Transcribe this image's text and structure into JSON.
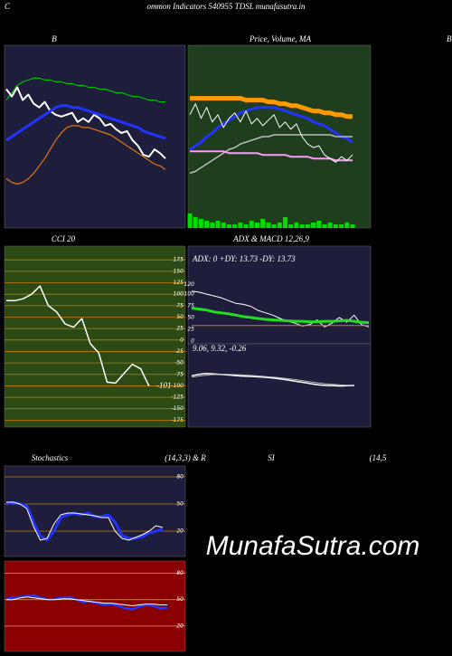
{
  "header": {
    "left": "C",
    "title": "ommon  Indicators 540955 TDSL  munafasutra.in",
    "edge_label": "B"
  },
  "watermark": "MunafaSutra.com",
  "chart_data": [
    {
      "type": "line",
      "title": "B",
      "background": "#1e1e3c",
      "ylim": [
        0,
        100
      ],
      "series": [
        {
          "color": "#00bb00",
          "width": 1.2,
          "values": [
            70,
            74,
            78,
            80,
            81,
            82,
            82,
            81,
            81,
            80,
            80,
            79,
            79,
            78,
            78,
            77,
            77,
            76,
            76,
            75,
            74,
            74,
            73,
            72,
            72,
            71,
            70,
            70,
            69,
            69
          ]
        },
        {
          "color": "#ffffff",
          "width": 2,
          "values": [
            76,
            72,
            77,
            70,
            73,
            68,
            66,
            69,
            64,
            62,
            61,
            62,
            63,
            58,
            60,
            58,
            62,
            60,
            56,
            57,
            54,
            52,
            53,
            48,
            45,
            40,
            39,
            43,
            41,
            38
          ]
        },
        {
          "color": "#2233ff",
          "width": 3,
          "values": [
            48,
            50,
            52,
            54,
            56,
            58,
            60,
            62,
            64,
            66,
            67,
            67,
            66,
            66,
            65,
            64,
            63,
            62,
            61,
            60,
            59,
            58,
            57,
            56,
            55,
            53,
            52,
            51,
            50,
            49
          ]
        },
        {
          "color": "#dd7711",
          "width": 1.2,
          "values": [
            27,
            25,
            24,
            25,
            27,
            30,
            34,
            38,
            43,
            48,
            52,
            55,
            56,
            56,
            55,
            55,
            54,
            53,
            52,
            51,
            49,
            47,
            45,
            43,
            41,
            39,
            37,
            35,
            34,
            32
          ]
        }
      ]
    },
    {
      "type": "line",
      "title": "Price, Volume, MA",
      "background": "#1e3e1e",
      "ylim": [
        0,
        100
      ],
      "y2lim": [
        0,
        100
      ],
      "series": [
        {
          "color": "#ff9900",
          "width": 5,
          "values": [
            71,
            71,
            71,
            71,
            71,
            71,
            71,
            71,
            71,
            71,
            70,
            70,
            70,
            70,
            69,
            69,
            68,
            68,
            67,
            67,
            66,
            65,
            64,
            64,
            63,
            63,
            62,
            62,
            61,
            61
          ]
        },
        {
          "color": "#2233ff",
          "width": 3,
          "values": [
            43,
            45,
            47,
            50,
            52,
            55,
            57,
            59,
            61,
            63,
            64,
            65,
            66,
            66,
            66,
            66,
            65,
            64,
            63,
            62,
            61,
            60,
            58,
            57,
            56,
            54,
            52,
            50,
            49,
            47
          ]
        },
        {
          "color": "#bbbbbb",
          "width": 1.5,
          "values": [
            30,
            31,
            33,
            35,
            37,
            39,
            41,
            43,
            44,
            46,
            47,
            48,
            49,
            50,
            50,
            51,
            51,
            51,
            51,
            51,
            51,
            51,
            51,
            51,
            51,
            51,
            50,
            50,
            50,
            50
          ]
        },
        {
          "color": "#ff99ff",
          "width": 2,
          "values": [
            42,
            42,
            42,
            42,
            42,
            42,
            42,
            41,
            41,
            41,
            41,
            41,
            41,
            40,
            40,
            40,
            40,
            40,
            39,
            39,
            39,
            39,
            38,
            38,
            38,
            38,
            37,
            37,
            37,
            37
          ]
        },
        {
          "color": "#ffffff",
          "width": 1,
          "values": [
            62,
            68,
            60,
            66,
            58,
            62,
            55,
            60,
            63,
            58,
            64,
            57,
            60,
            56,
            59,
            62,
            55,
            58,
            54,
            57,
            50,
            46,
            44,
            45,
            40,
            38,
            36,
            39,
            37,
            40
          ]
        },
        {
          "color": "#00dd00",
          "axis": "y2",
          "values": [
            8,
            6,
            5,
            4,
            3,
            4,
            3,
            2,
            2,
            3,
            2,
            4,
            3,
            5,
            3,
            2,
            3,
            6,
            2,
            3,
            2,
            2,
            3,
            4,
            2,
            3,
            2,
            2,
            3,
            2
          ]
        }
      ]
    },
    {
      "type": "line",
      "title": "CCI 20",
      "background": "#2c4a14",
      "grid": true,
      "grid_color": "#c87a00",
      "ylim": [
        -190,
        205
      ],
      "yticks": [
        175,
        150,
        125,
        100,
        75,
        50,
        25,
        0,
        -25,
        -50,
        -75,
        -100,
        -125,
        -150,
        -175
      ],
      "series": [
        {
          "color": "#ffffff",
          "width": 1.5,
          "values": [
            86,
            86,
            90,
            100,
            118,
            75,
            61,
            35,
            28,
            47,
            -8,
            -28,
            -92,
            -94,
            -73,
            -53,
            -63,
            -101
          ],
          "value_labels": [
            null,
            null,
            null,
            null,
            null,
            null,
            null,
            null,
            null,
            null,
            null,
            null,
            null,
            null,
            null,
            null,
            null,
            "-101"
          ]
        }
      ]
    },
    {
      "type": "line",
      "title": "ADX  & MACD 12,26,9",
      "subtitle": "ADX: 0  +DY: 13.73 -DY: 13.73",
      "background": "#1e1e3c",
      "ylim": [
        -6,
        202
      ],
      "yticks": [
        120,
        100,
        75,
        50,
        25,
        0
      ],
      "series": [
        {
          "color": "#ffffff",
          "width": 1,
          "values": [
            106,
            104,
            100,
            96,
            92,
            86,
            80,
            78,
            74,
            65,
            60,
            55,
            48,
            42,
            38,
            32,
            35,
            45,
            30,
            38,
            50,
            40,
            55,
            35,
            30
          ]
        },
        {
          "color": "#dd7711",
          "width": 1,
          "values": [
            33,
            33,
            33,
            33,
            33,
            33,
            33,
            33,
            33,
            33,
            33,
            33,
            33,
            33,
            33,
            33,
            33,
            33,
            33,
            33,
            33,
            33,
            33,
            33,
            33
          ]
        },
        {
          "color": "#22dd22",
          "width": 3,
          "values": [
            70,
            68,
            66,
            62,
            60,
            58,
            55,
            52,
            50,
            48,
            46,
            45,
            44,
            43,
            42,
            42,
            41,
            41,
            42,
            42,
            43,
            44,
            42,
            40,
            39
          ]
        }
      ]
    },
    {
      "type": "line",
      "subtitle": "9.06,  9.32,  -0.26",
      "background": "#1e1e3c",
      "ylim": [
        -10,
        20
      ],
      "series": [
        {
          "color": "#ffffff",
          "width": 1.5,
          "values": [
            8.5,
            9,
            9.3,
            9.2,
            9,
            8.8,
            8.6,
            8.4,
            8.3,
            8.2,
            8,
            7.8,
            7.5,
            7.2,
            6.8,
            6.4,
            6,
            5.6,
            5.2,
            5,
            4.9,
            4.8,
            4.9,
            5
          ]
        },
        {
          "color": "#bbbbbb",
          "width": 1,
          "values": [
            8,
            8.4,
            8.7,
            8.9,
            9,
            9,
            8.9,
            8.8,
            8.7,
            8.5,
            8.3,
            8.1,
            7.9,
            7.6,
            7.3,
            7,
            6.6,
            6.2,
            5.9,
            5.6,
            5.4,
            5.2,
            5.1,
            5.1
          ]
        }
      ]
    },
    {
      "type": "line",
      "title": "Stochastics",
      "subtitle": "(14,3,3) & R",
      "background": "#1e1e3c",
      "grid": true,
      "grid_color": "#c87a00",
      "ylim": [
        -8,
        92
      ],
      "yticks": [
        80,
        50,
        20
      ],
      "series": [
        {
          "color": "#2233ff",
          "width": 3,
          "values": [
            50,
            52,
            50,
            48,
            30,
            15,
            10,
            20,
            35,
            38,
            40,
            38,
            40,
            36,
            36,
            38,
            30,
            15,
            12,
            12,
            14,
            18,
            20,
            22
          ]
        },
        {
          "color": "#ffffff",
          "width": 1,
          "values": [
            52,
            52,
            50,
            45,
            25,
            10,
            12,
            28,
            38,
            40,
            40,
            39,
            38,
            37,
            35,
            35,
            20,
            12,
            10,
            13,
            16,
            20,
            26,
            24
          ]
        }
      ]
    },
    {
      "type": "line",
      "title": "SI",
      "subtitle": "(14,5",
      "background": "#8b0000",
      "grid": true,
      "grid_color": "#e0a060",
      "ylim": [
        -9,
        94
      ],
      "yticks": [
        80,
        50,
        20
      ],
      "series": [
        {
          "color": "#2233ff",
          "width": 2.5,
          "values": [
            51,
            52,
            53,
            54,
            55,
            52,
            50,
            51,
            52,
            53,
            50,
            47,
            48,
            46,
            44,
            45,
            43,
            40,
            39,
            42,
            44,
            43,
            40,
            41
          ]
        },
        {
          "color": "#ffffff",
          "width": 1,
          "values": [
            50,
            50,
            52,
            53,
            52,
            51,
            50,
            50,
            51,
            51,
            50,
            49,
            48,
            47,
            46,
            46,
            45,
            44,
            43,
            44,
            45,
            45,
            44,
            44
          ]
        }
      ]
    }
  ]
}
